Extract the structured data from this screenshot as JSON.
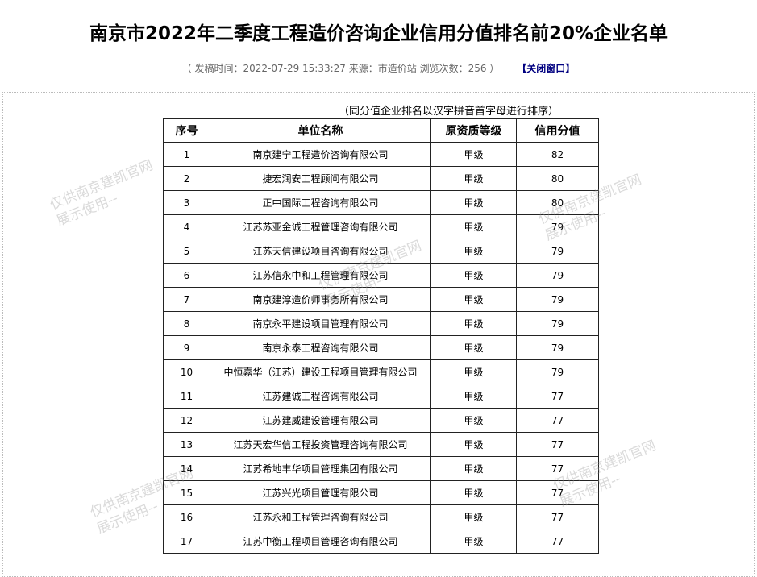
{
  "header": {
    "title": "南京市2022年二季度工程造价咨询企业信用分值排名前20%企业名单",
    "meta": "（ 发稿时间：2022-07-29 15:33:27  来源：市造价站   浏览次数：256 ）",
    "close": "【关闭窗口】"
  },
  "note": "（同分值企业排名以汉字拼音首字母进行排序）",
  "watermark": [
    "仅供南京建凯官网",
    "展示使用--"
  ],
  "table": {
    "columns": [
      "序号",
      "单位名称",
      "原资质等级",
      "信用分值"
    ],
    "rows": [
      [
        1,
        "南京建宁工程造价咨询有限公司",
        "甲级",
        82
      ],
      [
        2,
        "捷宏润安工程顾问有限公司",
        "甲级",
        80
      ],
      [
        3,
        "正中国际工程咨询有限公司",
        "甲级",
        80
      ],
      [
        4,
        "江苏苏亚金诚工程管理咨询有限公司",
        "甲级",
        79
      ],
      [
        5,
        "江苏天信建设项目咨询有限公司",
        "甲级",
        79
      ],
      [
        6,
        "江苏信永中和工程管理有限公司",
        "甲级",
        79
      ],
      [
        7,
        "南京建淳造价师事务所有限公司",
        "甲级",
        79
      ],
      [
        8,
        "南京永平建设项目管理有限公司",
        "甲级",
        79
      ],
      [
        9,
        "南京永泰工程咨询有限公司",
        "甲级",
        79
      ],
      [
        10,
        "中恒嘉华（江苏）建设工程项目管理有限公司",
        "甲级",
        79
      ],
      [
        11,
        "江苏建诚工程咨询有限公司",
        "甲级",
        77
      ],
      [
        12,
        "江苏建威建设管理有限公司",
        "甲级",
        77
      ],
      [
        13,
        "江苏天宏华信工程投资管理咨询有限公司",
        "甲级",
        77
      ],
      [
        14,
        "江苏希地丰华项目管理集团有限公司",
        "甲级",
        77
      ],
      [
        15,
        "江苏兴光项目管理有限公司",
        "甲级",
        77
      ],
      [
        16,
        "江苏永和工程管理咨询有限公司",
        "甲级",
        77
      ],
      [
        17,
        "江苏中衡工程项目管理咨询有限公司",
        "甲级",
        77
      ]
    ]
  }
}
